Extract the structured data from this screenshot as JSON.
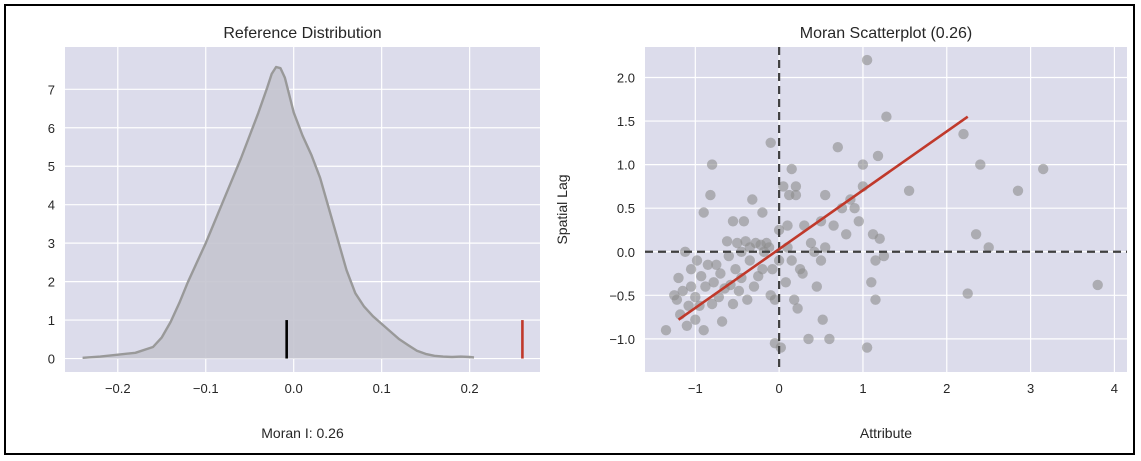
{
  "colors": {
    "panel_bg": "#dcdceb",
    "grid": "#ffffff",
    "kde_fill": "#c4c4cf",
    "kde_line": "#999999",
    "observed_marker": "#c0392b",
    "mean_marker": "#000000",
    "points": "#8c8c8c",
    "fit_line": "#c0392b",
    "ref_lines": "#404040"
  },
  "chart_data": [
    {
      "type": "area",
      "title": "Reference Distribution",
      "xlabel": "Moran I: 0.26",
      "ylabel": "",
      "xlim": [
        -0.26,
        0.28
      ],
      "ylim": [
        -0.35,
        8.1
      ],
      "xticks": [
        -0.2,
        -0.1,
        0.0,
        0.1,
        0.2
      ],
      "xtick_labels": [
        "−0.2",
        "−0.1",
        "0.0",
        "0.1",
        "0.2"
      ],
      "yticks": [
        0,
        1,
        2,
        3,
        4,
        5,
        6,
        7
      ],
      "ytick_labels": [
        "0",
        "1",
        "2",
        "3",
        "4",
        "5",
        "6",
        "7"
      ],
      "grid": true,
      "kde": {
        "x": [
          -0.24,
          -0.22,
          -0.2,
          -0.18,
          -0.16,
          -0.15,
          -0.14,
          -0.13,
          -0.12,
          -0.11,
          -0.1,
          -0.09,
          -0.08,
          -0.07,
          -0.06,
          -0.05,
          -0.04,
          -0.03,
          -0.025,
          -0.02,
          -0.015,
          -0.01,
          -0.005,
          0.0,
          0.01,
          0.02,
          0.03,
          0.04,
          0.05,
          0.06,
          0.07,
          0.08,
          0.09,
          0.1,
          0.11,
          0.12,
          0.13,
          0.14,
          0.15,
          0.16,
          0.17,
          0.18,
          0.19,
          0.2,
          0.205
        ],
        "y": [
          0.02,
          0.05,
          0.1,
          0.15,
          0.3,
          0.55,
          0.95,
          1.45,
          2.0,
          2.5,
          3.0,
          3.55,
          4.1,
          4.65,
          5.2,
          5.8,
          6.4,
          7.05,
          7.4,
          7.58,
          7.55,
          7.3,
          6.85,
          6.4,
          5.8,
          5.3,
          4.7,
          3.9,
          3.1,
          2.3,
          1.7,
          1.35,
          1.1,
          0.9,
          0.7,
          0.5,
          0.35,
          0.2,
          0.12,
          0.07,
          0.05,
          0.04,
          0.05,
          0.04,
          0.03
        ]
      },
      "markers": [
        {
          "x": -0.008,
          "height": 1.0,
          "color": "#000000"
        },
        {
          "x": 0.26,
          "height": 1.0,
          "color": "#c0392b"
        }
      ]
    },
    {
      "type": "scatter",
      "title": "Moran Scatterplot (0.26)",
      "xlabel": "Attribute",
      "ylabel": "Spatial Lag",
      "xlim": [
        -1.6,
        4.15
      ],
      "ylim": [
        -1.38,
        2.35
      ],
      "xticks": [
        -1,
        0,
        1,
        2,
        3,
        4
      ],
      "xtick_labels": [
        "−1",
        "0",
        "1",
        "2",
        "3",
        "4"
      ],
      "yticks": [
        -1.0,
        -0.5,
        0.0,
        0.5,
        1.0,
        1.5,
        2.0
      ],
      "ytick_labels": [
        "−1.0",
        "−0.5",
        "0.0",
        "0.5",
        "1.0",
        "1.5",
        "2.0"
      ],
      "grid": true,
      "reference_lines": {
        "x": 0,
        "y": 0
      },
      "fit_line": {
        "x": [
          -1.2,
          2.25
        ],
        "y": [
          -0.78,
          1.55
        ]
      },
      "points": [
        [
          -1.35,
          -0.9
        ],
        [
          -1.25,
          -0.5
        ],
        [
          -1.22,
          -0.55
        ],
        [
          -1.18,
          -0.72
        ],
        [
          -1.2,
          -0.3
        ],
        [
          -1.15,
          -0.45
        ],
        [
          -1.12,
          0.0
        ],
        [
          -1.1,
          -0.85
        ],
        [
          -1.08,
          -0.62
        ],
        [
          -1.05,
          -0.4
        ],
        [
          -1.05,
          -0.2
        ],
        [
          -1.0,
          -0.78
        ],
        [
          -1.0,
          -0.52
        ],
        [
          -0.98,
          -0.1
        ],
        [
          -0.95,
          -0.62
        ],
        [
          -0.93,
          -0.28
        ],
        [
          -0.9,
          0.45
        ],
        [
          -0.9,
          -0.9
        ],
        [
          -0.88,
          -0.4
        ],
        [
          -0.85,
          -0.15
        ],
        [
          -0.82,
          0.65
        ],
        [
          -0.8,
          1.0
        ],
        [
          -0.8,
          -0.6
        ],
        [
          -0.78,
          -0.35
        ],
        [
          -0.75,
          -0.15
        ],
        [
          -0.72,
          -0.52
        ],
        [
          -0.7,
          -0.25
        ],
        [
          -0.68,
          -0.8
        ],
        [
          -0.65,
          -0.42
        ],
        [
          -0.62,
          0.12
        ],
        [
          -0.6,
          -0.05
        ],
        [
          -0.58,
          -0.38
        ],
        [
          -0.55,
          -0.6
        ],
        [
          -0.55,
          0.35
        ],
        [
          -0.52,
          -0.2
        ],
        [
          -0.5,
          0.1
        ],
        [
          -0.48,
          -0.45
        ],
        [
          -0.45,
          -0.3
        ],
        [
          -0.45,
          0.0
        ],
        [
          -0.42,
          0.35
        ],
        [
          -0.4,
          0.12
        ],
        [
          -0.38,
          -0.55
        ],
        [
          -0.35,
          -0.1
        ],
        [
          -0.35,
          0.05
        ],
        [
          -0.32,
          0.6
        ],
        [
          -0.3,
          -0.4
        ],
        [
          -0.28,
          0.1
        ],
        [
          -0.25,
          -0.28
        ],
        [
          -0.22,
          0.08
        ],
        [
          -0.2,
          -0.2
        ],
        [
          -0.2,
          0.45
        ],
        [
          -0.18,
          0.0
        ],
        [
          -0.15,
          0.1
        ],
        [
          -0.12,
          0.05
        ],
        [
          -0.1,
          -0.5
        ],
        [
          -0.1,
          1.25
        ],
        [
          -0.08,
          -0.2
        ],
        [
          -0.05,
          -1.05
        ],
        [
          -0.05,
          -0.55
        ],
        [
          0.0,
          0.25
        ],
        [
          0.0,
          -0.1
        ],
        [
          0.02,
          -1.1
        ],
        [
          0.05,
          0.75
        ],
        [
          0.08,
          -0.35
        ],
        [
          0.1,
          0.05
        ],
        [
          0.1,
          0.3
        ],
        [
          0.12,
          0.65
        ],
        [
          0.15,
          0.95
        ],
        [
          0.15,
          -0.1
        ],
        [
          0.18,
          -0.55
        ],
        [
          0.2,
          0.75
        ],
        [
          0.2,
          0.65
        ],
        [
          0.22,
          -0.65
        ],
        [
          0.25,
          -0.2
        ],
        [
          0.28,
          -0.25
        ],
        [
          0.3,
          0.3
        ],
        [
          0.35,
          -1.0
        ],
        [
          0.38,
          0.1
        ],
        [
          0.42,
          0.0
        ],
        [
          0.45,
          -0.4
        ],
        [
          0.5,
          -0.1
        ],
        [
          0.5,
          0.35
        ],
        [
          0.52,
          -0.78
        ],
        [
          0.55,
          0.05
        ],
        [
          0.55,
          0.65
        ],
        [
          0.6,
          -1.0
        ],
        [
          0.65,
          0.3
        ],
        [
          0.7,
          1.2
        ],
        [
          0.75,
          0.5
        ],
        [
          0.8,
          0.2
        ],
        [
          0.85,
          0.6
        ],
        [
          0.9,
          0.5
        ],
        [
          0.95,
          0.35
        ],
        [
          1.0,
          1.0
        ],
        [
          1.0,
          0.75
        ],
        [
          1.05,
          -1.1
        ],
        [
          1.05,
          2.2
        ],
        [
          1.1,
          -0.35
        ],
        [
          1.12,
          0.2
        ],
        [
          1.15,
          -0.1
        ],
        [
          1.15,
          -0.55
        ],
        [
          1.18,
          1.1
        ],
        [
          1.2,
          0.15
        ],
        [
          1.25,
          -0.05
        ],
        [
          1.28,
          1.55
        ],
        [
          1.55,
          0.7
        ],
        [
          2.2,
          1.35
        ],
        [
          2.25,
          -0.48
        ],
        [
          2.35,
          0.2
        ],
        [
          2.4,
          1.0
        ],
        [
          2.5,
          0.05
        ],
        [
          2.85,
          0.7
        ],
        [
          3.15,
          0.95
        ],
        [
          3.8,
          -0.38
        ]
      ]
    }
  ]
}
